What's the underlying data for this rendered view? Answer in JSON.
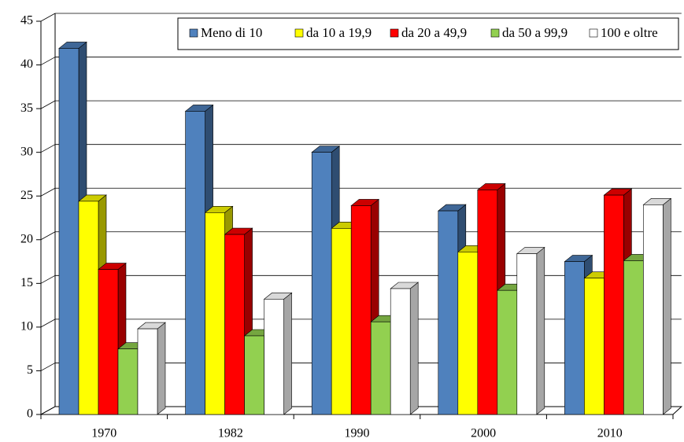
{
  "chart_data": {
    "type": "bar3d",
    "categories": [
      "1970",
      "1982",
      "1990",
      "2000",
      "2010"
    ],
    "series": [
      {
        "name": "Meno di 10",
        "color": "#4f81bd",
        "values": [
          41.9,
          34.7,
          30.0,
          23.3,
          17.5
        ]
      },
      {
        "name": "da 10 a 19,9",
        "color": "#ffff00",
        "values": [
          24.4,
          23.1,
          21.3,
          18.6,
          15.6
        ]
      },
      {
        "name": "da 20 a 49,9",
        "color": "#ff0000",
        "values": [
          16.6,
          20.6,
          23.9,
          25.7,
          25.1
        ]
      },
      {
        "name": "da 50 a 99,9",
        "color": "#92d050",
        "values": [
          7.5,
          9.0,
          10.6,
          14.2,
          17.6
        ]
      },
      {
        "name": "100 e oltre",
        "color": "#ffffff",
        "values": [
          9.8,
          13.2,
          14.4,
          18.4,
          24.0
        ]
      }
    ],
    "ylim": [
      0,
      45
    ],
    "yticks": [
      0,
      5,
      10,
      15,
      20,
      25,
      30,
      35,
      40,
      45
    ],
    "grid": true,
    "legend": "top-right"
  }
}
